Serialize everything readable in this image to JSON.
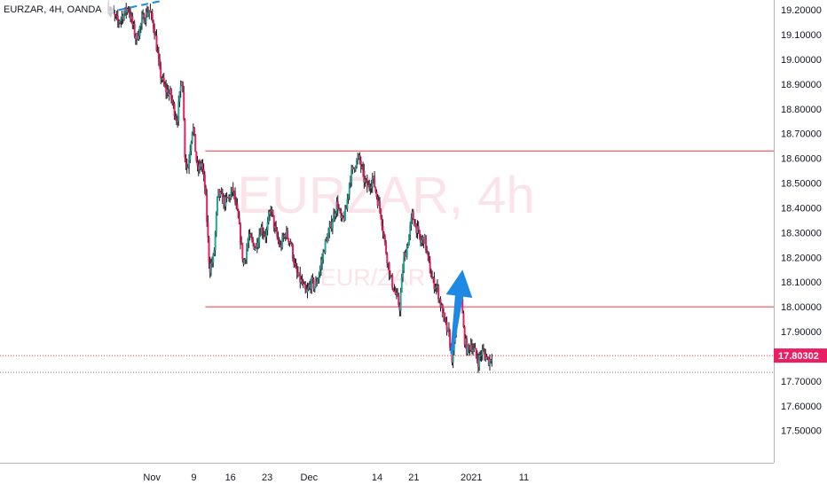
{
  "header": {
    "symbol_label": "EURZAR, 4H, OANDA"
  },
  "watermark": {
    "main": "EURZAR, 4h",
    "sub": "EUR/ZAR"
  },
  "colors": {
    "up": "#26a69a",
    "down": "#e91e63",
    "wick": "#1a1a1a",
    "level": "#f23645",
    "arrow": "#1e88e5",
    "price_tag_bg": "#e91e63",
    "grid_text": "#131722",
    "watermark": "#fbe3ea"
  },
  "chart_data": {
    "type": "candlestick",
    "title": "EURZAR, 4H, OANDA",
    "xlabel": "",
    "ylabel": "",
    "ylim": [
      17.37,
      19.24
    ],
    "x_day_range": [
      -8.5,
      43.5
    ],
    "y_ticks": [
      "19.20000",
      "19.10000",
      "19.00000",
      "18.90000",
      "18.80000",
      "18.70000",
      "18.60000",
      "18.50000",
      "18.40000",
      "18.30000",
      "18.20000",
      "18.10000",
      "18.00000",
      "17.90000",
      "17.80000",
      "17.70000",
      "17.60000",
      "17.50000"
    ],
    "x_ticks": [
      {
        "label": "Nov",
        "day": 0
      },
      {
        "label": "9",
        "day": 8
      },
      {
        "label": "16",
        "day": 15
      },
      {
        "label": "23",
        "day": 22
      },
      {
        "label": "Dec",
        "day": 30
      },
      {
        "label": "14",
        "day": 43
      },
      {
        "label": "21",
        "day": 50
      },
      {
        "label": "2021",
        "day": 61
      },
      {
        "label": "11",
        "day": 71
      }
    ],
    "resistance_level": 18.63,
    "support_level": 18.0,
    "current_price": 17.80302,
    "current_price_label": "17.80302",
    "dotted_low_level": 17.735,
    "trend_line_top": [
      {
        "day": -8.5,
        "price": 19.19
      },
      {
        "day": 1.5,
        "price": 19.235
      }
    ],
    "projection_arrow": {
      "from": {
        "day": 57.2,
        "price": 17.81
      },
      "to": {
        "day": 59.3,
        "price": 18.15
      }
    },
    "price_path": [
      [
        -8.5,
        19.22
      ],
      [
        -6.5,
        19.15
      ],
      [
        -4.5,
        19.21
      ],
      [
        -3.0,
        19.08
      ],
      [
        -1.8,
        19.16
      ],
      [
        -0.5,
        19.2
      ],
      [
        0.5,
        19.12
      ],
      [
        1.5,
        18.95
      ],
      [
        2.5,
        18.88
      ],
      [
        3.5,
        18.86
      ],
      [
        4.8,
        18.75
      ],
      [
        5.8,
        18.95
      ],
      [
        6.3,
        18.62
      ],
      [
        6.8,
        18.55
      ],
      [
        7.8,
        18.74
      ],
      [
        8.7,
        18.55
      ],
      [
        9.5,
        18.58
      ],
      [
        10.2,
        18.47
      ],
      [
        11.0,
        18.15
      ],
      [
        11.8,
        18.2
      ],
      [
        12.6,
        18.46
      ],
      [
        14.0,
        18.42
      ],
      [
        15.5,
        18.47
      ],
      [
        16.5,
        18.35
      ],
      [
        17.5,
        18.17
      ],
      [
        18.5,
        18.28
      ],
      [
        19.8,
        18.24
      ],
      [
        20.8,
        18.32
      ],
      [
        21.8,
        18.29
      ],
      [
        22.7,
        18.4
      ],
      [
        23.6,
        18.3
      ],
      [
        24.5,
        18.24
      ],
      [
        25.5,
        18.3
      ],
      [
        26.5,
        18.26
      ],
      [
        27.5,
        18.14
      ],
      [
        28.5,
        18.1
      ],
      [
        29.5,
        18.05
      ],
      [
        30.4,
        18.1
      ],
      [
        31.2,
        18.08
      ],
      [
        32.2,
        18.16
      ],
      [
        33.0,
        18.25
      ],
      [
        33.8,
        18.3
      ],
      [
        34.6,
        18.36
      ],
      [
        35.4,
        18.42
      ],
      [
        36.2,
        18.34
      ],
      [
        37.0,
        18.38
      ],
      [
        37.8,
        18.52
      ],
      [
        38.8,
        18.58
      ],
      [
        39.6,
        18.6
      ],
      [
        40.4,
        18.52
      ],
      [
        41.2,
        18.48
      ],
      [
        42.2,
        18.52
      ],
      [
        43.0,
        18.44
      ],
      [
        43.7,
        18.38
      ],
      [
        44.5,
        18.25
      ],
      [
        45.5,
        18.12
      ],
      [
        46.5,
        18.05
      ],
      [
        47.3,
        18.0
      ],
      [
        48.0,
        18.18
      ],
      [
        48.8,
        18.25
      ],
      [
        49.7,
        18.37
      ],
      [
        50.5,
        18.32
      ],
      [
        51.3,
        18.26
      ],
      [
        52.0,
        18.28
      ],
      [
        52.8,
        18.18
      ],
      [
        53.6,
        18.1
      ],
      [
        54.4,
        18.08
      ],
      [
        55.2,
        18.0
      ],
      [
        56.0,
        17.93
      ],
      [
        56.7,
        17.88
      ],
      [
        57.4,
        17.78
      ],
      [
        58.1,
        17.95
      ],
      [
        58.9,
        18.08
      ],
      [
        59.6,
        17.88
      ],
      [
        60.2,
        17.82
      ],
      [
        60.9,
        17.85
      ],
      [
        61.6,
        17.82
      ],
      [
        62.3,
        17.78
      ],
      [
        63.0,
        17.82
      ],
      [
        63.8,
        17.8
      ],
      [
        64.4,
        17.78
      ],
      [
        65.0,
        17.81
      ]
    ]
  }
}
